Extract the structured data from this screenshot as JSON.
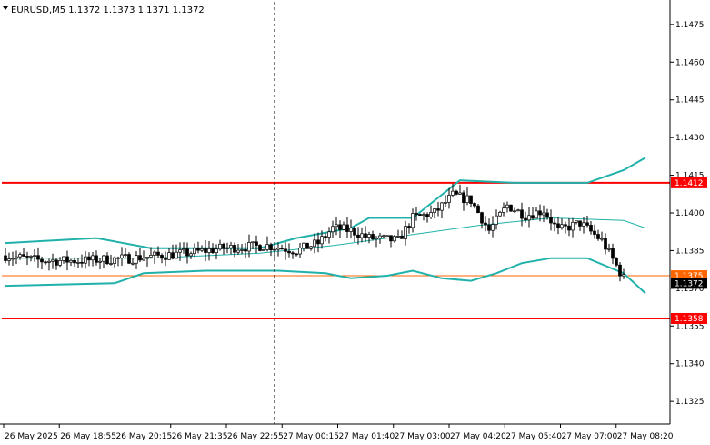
{
  "chart_data": {
    "type": "candlestick",
    "title": "EURUSD,M5  1.1372 1.1373 1.1371 1.1372",
    "ylim": [
      1.1316,
      1.1484
    ],
    "y_ticks": [
      "1.1475",
      "1.1460",
      "1.1445",
      "1.1430",
      "1.1415",
      "1.1400",
      "1.1385",
      "1.1370",
      "1.1355",
      "1.1340",
      "1.1325"
    ],
    "x_ticks": [
      "26 May 2025",
      "26 May 18:55",
      "26 May 20:15",
      "26 May 21:35",
      "26 May 22:55",
      "27 May 00:15",
      "27 May 01:40",
      "27 May 03:00",
      "27 May 04:20",
      "27 May 05:40",
      "27 May 07:00",
      "27 May 08:20"
    ],
    "levels": [
      {
        "value": 1.1412,
        "label": "1.1412",
        "color": "#ff0000",
        "style": "thick"
      },
      {
        "value": 1.1358,
        "label": "1.1358",
        "color": "#ff0000",
        "style": "thick"
      },
      {
        "value": 1.1375,
        "label": "1.1375",
        "color": "#ff6600",
        "style": "thin"
      }
    ],
    "current_price": {
      "value": 1.1372,
      "label": "1.1372"
    },
    "crosshair_bar": 74,
    "bars": 170,
    "bands": {
      "upper": [
        [
          0,
          1.1388
        ],
        [
          25,
          1.139
        ],
        [
          40,
          1.1386
        ],
        [
          70,
          1.1386
        ],
        [
          80,
          1.139
        ],
        [
          95,
          1.1394
        ],
        [
          100,
          1.1398
        ],
        [
          112,
          1.1398
        ],
        [
          125,
          1.1413
        ],
        [
          140,
          1.1412
        ],
        [
          160,
          1.1412
        ],
        [
          170,
          1.1417
        ],
        [
          176,
          1.1422
        ]
      ],
      "middle": [
        [
          0,
          1.1382
        ],
        [
          40,
          1.1382
        ],
        [
          70,
          1.1384
        ],
        [
          90,
          1.1387
        ],
        [
          110,
          1.1391
        ],
        [
          130,
          1.1395
        ],
        [
          150,
          1.1398
        ],
        [
          170,
          1.1397
        ],
        [
          176,
          1.1394
        ]
      ],
      "lower": [
        [
          0,
          1.1371
        ],
        [
          30,
          1.1372
        ],
        [
          38,
          1.1376
        ],
        [
          55,
          1.1377
        ],
        [
          75,
          1.1377
        ],
        [
          88,
          1.1376
        ],
        [
          95,
          1.1374
        ],
        [
          105,
          1.1375
        ],
        [
          112,
          1.1377
        ],
        [
          120,
          1.1374
        ],
        [
          128,
          1.1373
        ],
        [
          135,
          1.1376
        ],
        [
          142,
          1.138
        ],
        [
          150,
          1.1382
        ],
        [
          160,
          1.1382
        ],
        [
          170,
          1.1376
        ],
        [
          176,
          1.1368
        ]
      ]
    },
    "price_path": [
      [
        0,
        1.1383
      ],
      [
        10,
        1.1381
      ],
      [
        20,
        1.1381
      ],
      [
        35,
        1.1382
      ],
      [
        50,
        1.1384
      ],
      [
        60,
        1.1386
      ],
      [
        72,
        1.1387
      ],
      [
        80,
        1.1385
      ],
      [
        86,
        1.1388
      ],
      [
        90,
        1.1394
      ],
      [
        95,
        1.1393
      ],
      [
        100,
        1.139
      ],
      [
        108,
        1.1389
      ],
      [
        112,
        1.1398
      ],
      [
        118,
        1.14
      ],
      [
        123,
        1.1407
      ],
      [
        128,
        1.1405
      ],
      [
        133,
        1.1393
      ],
      [
        138,
        1.1403
      ],
      [
        143,
        1.1399
      ],
      [
        148,
        1.1401
      ],
      [
        152,
        1.1393
      ],
      [
        158,
        1.1396
      ],
      [
        164,
        1.1389
      ],
      [
        170,
        1.1374
      ],
      [
        172,
        1.1374
      ]
    ],
    "grid": "on",
    "legend": "none"
  }
}
